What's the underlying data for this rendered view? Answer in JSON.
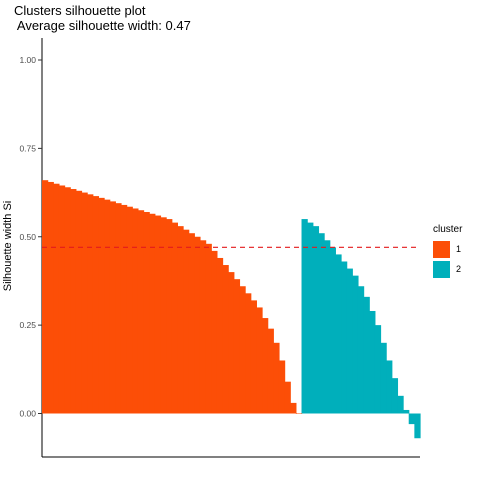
{
  "chart_data": {
    "type": "area",
    "title": "Clusters silhouette plot",
    "subtitle": " Average silhouette width: 0.47",
    "ylabel": "Silhouette width Si",
    "xlabel": "",
    "ylim": [
      -0.1,
      1.05
    ],
    "yticks": [
      "0.00",
      "0.25",
      "0.50",
      "0.75",
      "1.00"
    ],
    "average_line": 0.47,
    "grid": false,
    "legend_position": "right",
    "legend_title": "cluster",
    "series": [
      {
        "name": "1",
        "color": "#FC4E07",
        "values": [
          0.66,
          0.655,
          0.65,
          0.645,
          0.64,
          0.635,
          0.63,
          0.625,
          0.62,
          0.615,
          0.61,
          0.605,
          0.6,
          0.595,
          0.59,
          0.585,
          0.58,
          0.575,
          0.57,
          0.565,
          0.56,
          0.555,
          0.55,
          0.54,
          0.53,
          0.52,
          0.51,
          0.5,
          0.49,
          0.48,
          0.46,
          0.44,
          0.42,
          0.4,
          0.38,
          0.36,
          0.34,
          0.32,
          0.3,
          0.27,
          0.24,
          0.2,
          0.15,
          0.09,
          0.03,
          0.0
        ]
      },
      {
        "name": "2",
        "color": "#00AFBB",
        "values": [
          0.55,
          0.54,
          0.53,
          0.51,
          0.49,
          0.47,
          0.45,
          0.43,
          0.41,
          0.39,
          0.36,
          0.33,
          0.29,
          0.25,
          0.2,
          0.15,
          0.1,
          0.05,
          0.01,
          -0.03,
          -0.07
        ]
      }
    ]
  }
}
